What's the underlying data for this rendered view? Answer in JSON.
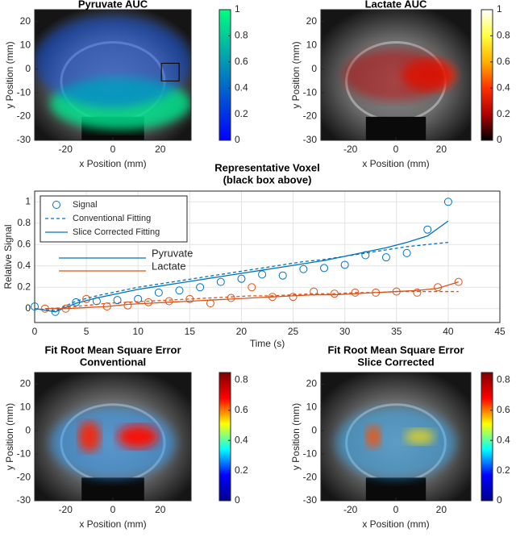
{
  "chart_data": [
    {
      "type": "image",
      "title": "Pyruvate AUC",
      "xlabel": "x Position (mm)",
      "ylabel": "y Position (mm)",
      "xlim": [
        -33,
        33
      ],
      "ylim": [
        -30,
        25
      ],
      "xticks": [
        -20,
        0,
        20
      ],
      "yticks": [
        -30,
        -20,
        -10,
        0,
        10,
        20
      ],
      "clim": [
        0,
        1
      ],
      "cticks": [
        0,
        0.2,
        0.4,
        0.6,
        0.8,
        1
      ],
      "colormap": [
        "#0000ff",
        "#0040df",
        "#0080bf",
        "#00bf9f",
        "#00ff80"
      ]
    },
    {
      "type": "image",
      "title": "Lactate AUC",
      "xlabel": "x Position (mm)",
      "ylabel": "y Position (mm)",
      "xlim": [
        -33,
        33
      ],
      "ylim": [
        -30,
        25
      ],
      "xticks": [
        -20,
        0,
        20
      ],
      "yticks": [
        -30,
        -20,
        -10,
        0,
        10,
        20
      ],
      "clim": [
        0,
        1
      ],
      "cticks": [
        0,
        0.2,
        0.4,
        0.6,
        0.8,
        1
      ],
      "colormap": [
        "#000000",
        "#b00000",
        "#ff3000",
        "#ffb000",
        "#ffff40",
        "#ffffff"
      ]
    },
    {
      "type": "line",
      "title": "Representative Voxel",
      "subtitle": "(black box above)",
      "xlabel": "Time (s)",
      "ylabel": "Relative Signal",
      "xlim": [
        0,
        45
      ],
      "ylim": [
        -0.13,
        1.1
      ],
      "xticks": [
        0,
        5,
        10,
        15,
        20,
        25,
        30,
        35,
        40,
        45
      ],
      "yticks": [
        0,
        0.2,
        0.4,
        0.6,
        0.8,
        1
      ],
      "grid": true,
      "fit_legend": [
        "Signal",
        "Conventional Fitting",
        "Slice Corrected Fitting"
      ],
      "series": [
        {
          "name": "Pyruvate",
          "color": "#0072bd",
          "x": [
            0,
            2,
            4,
            6,
            8,
            10,
            12,
            14,
            16,
            18,
            20,
            22,
            24,
            26,
            28,
            30,
            32,
            34,
            36,
            38,
            40
          ],
          "signal": [
            0.02,
            -0.03,
            0.06,
            0.07,
            0.08,
            0.09,
            0.15,
            0.17,
            0.2,
            0.25,
            0.28,
            0.32,
            0.31,
            0.37,
            0.38,
            0.41,
            0.5,
            0.48,
            0.52,
            0.74,
            1.0
          ],
          "conventional": [
            0.0,
            -0.02,
            0.07,
            0.12,
            0.16,
            0.2,
            0.23,
            0.26,
            0.29,
            0.32,
            0.35,
            0.38,
            0.41,
            0.44,
            0.46,
            0.49,
            0.52,
            0.55,
            0.58,
            0.6,
            0.62
          ],
          "slice_corrected": [
            0.0,
            -0.03,
            0.05,
            0.1,
            0.14,
            0.18,
            0.21,
            0.24,
            0.27,
            0.3,
            0.33,
            0.36,
            0.39,
            0.42,
            0.45,
            0.49,
            0.53,
            0.57,
            0.62,
            0.68,
            0.82
          ]
        },
        {
          "name": "Lactate",
          "color": "#d95319",
          "x": [
            1,
            3,
            5,
            7,
            9,
            11,
            13,
            15,
            17,
            19,
            21,
            23,
            25,
            27,
            29,
            31,
            33,
            35,
            37,
            39,
            41
          ],
          "signal": [
            0.0,
            0.0,
            0.09,
            0.02,
            0.03,
            0.06,
            0.07,
            0.09,
            0.05,
            0.1,
            0.2,
            0.11,
            0.11,
            0.16,
            0.14,
            0.15,
            0.15,
            0.16,
            0.15,
            0.2,
            0.25
          ],
          "conventional": [
            0.0,
            0.01,
            0.03,
            0.05,
            0.06,
            0.07,
            0.08,
            0.09,
            0.1,
            0.11,
            0.12,
            0.12,
            0.13,
            0.14,
            0.14,
            0.15,
            0.15,
            0.16,
            0.16,
            0.16,
            0.16
          ],
          "slice_corrected": [
            0.0,
            0.0,
            0.01,
            0.02,
            0.04,
            0.05,
            0.06,
            0.07,
            0.08,
            0.09,
            0.1,
            0.11,
            0.12,
            0.13,
            0.13,
            0.14,
            0.15,
            0.16,
            0.17,
            0.19,
            0.25
          ]
        }
      ]
    },
    {
      "type": "image",
      "title": "Fit Root Mean Square Error",
      "subtitle": "Conventional",
      "xlabel": "x Position (mm)",
      "ylabel": "y Position (mm)",
      "xlim": [
        -33,
        33
      ],
      "ylim": [
        -30,
        25
      ],
      "xticks": [
        -20,
        0,
        20
      ],
      "yticks": [
        -30,
        -20,
        -10,
        0,
        10,
        20
      ],
      "clim": [
        0,
        0.85
      ],
      "cticks": [
        0,
        0.2,
        0.4,
        0.6,
        0.8
      ],
      "colormap": [
        "#00008f",
        "#0000ff",
        "#00ffff",
        "#ffff00",
        "#ff0000",
        "#800000"
      ]
    },
    {
      "type": "image",
      "title": "Fit Root Mean Square Error",
      "subtitle": "Slice Corrected",
      "xlabel": "x Position (mm)",
      "ylabel": "y Position (mm)",
      "xlim": [
        -33,
        33
      ],
      "ylim": [
        -30,
        25
      ],
      "xticks": [
        -20,
        0,
        20
      ],
      "yticks": [
        -30,
        -20,
        -10,
        0,
        10,
        20
      ],
      "clim": [
        0,
        0.85
      ],
      "cticks": [
        0,
        0.2,
        0.4,
        0.6,
        0.8
      ],
      "colormap": [
        "#00008f",
        "#0000ff",
        "#00ffff",
        "#ffff00",
        "#ff0000",
        "#800000"
      ]
    }
  ]
}
